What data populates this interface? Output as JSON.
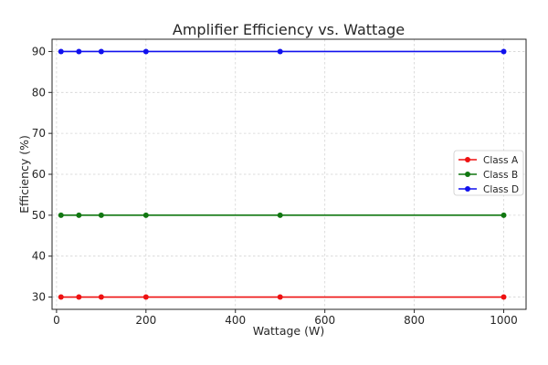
{
  "chart_data": {
    "type": "line",
    "title": "Amplifier Efficiency vs. Wattage",
    "xlabel": "Wattage (W)",
    "ylabel": "Efficiency (%)",
    "x": [
      10,
      50,
      100,
      200,
      500,
      1000
    ],
    "xlim": [
      -10,
      1050
    ],
    "ylim": [
      27,
      93
    ],
    "xticks": [
      0,
      200,
      400,
      600,
      800,
      1000
    ],
    "yticks": [
      30,
      40,
      50,
      60,
      70,
      80,
      90
    ],
    "grid": true,
    "legend_position": "center-right",
    "series": [
      {
        "name": "Class A",
        "color": "#ee1111",
        "values": [
          30,
          30,
          30,
          30,
          30,
          30
        ]
      },
      {
        "name": "Class B",
        "color": "#117711",
        "values": [
          50,
          50,
          50,
          50,
          50,
          50
        ]
      },
      {
        "name": "Class D",
        "color": "#1111ee",
        "values": [
          90,
          90,
          90,
          90,
          90,
          90
        ]
      }
    ]
  }
}
